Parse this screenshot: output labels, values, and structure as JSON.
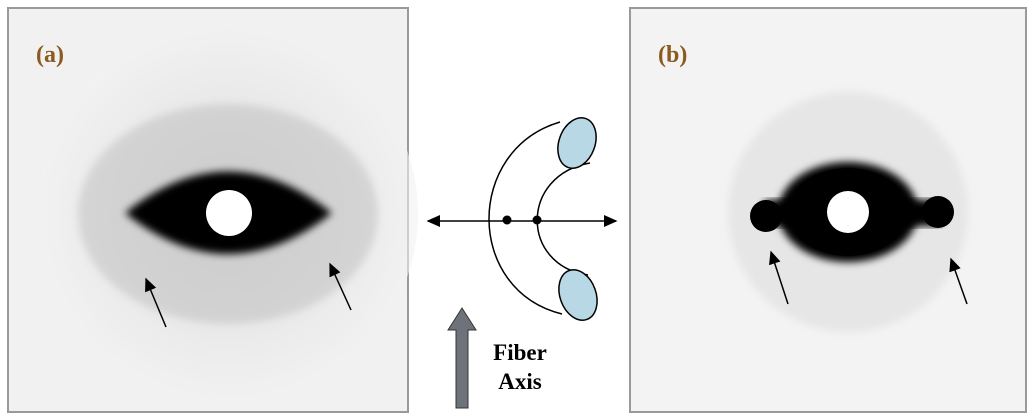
{
  "panels": [
    {
      "label": "(a)"
    },
    {
      "label": "(b)"
    }
  ],
  "diagram": {
    "label": [
      "Fiber",
      "Axis"
    ]
  }
}
